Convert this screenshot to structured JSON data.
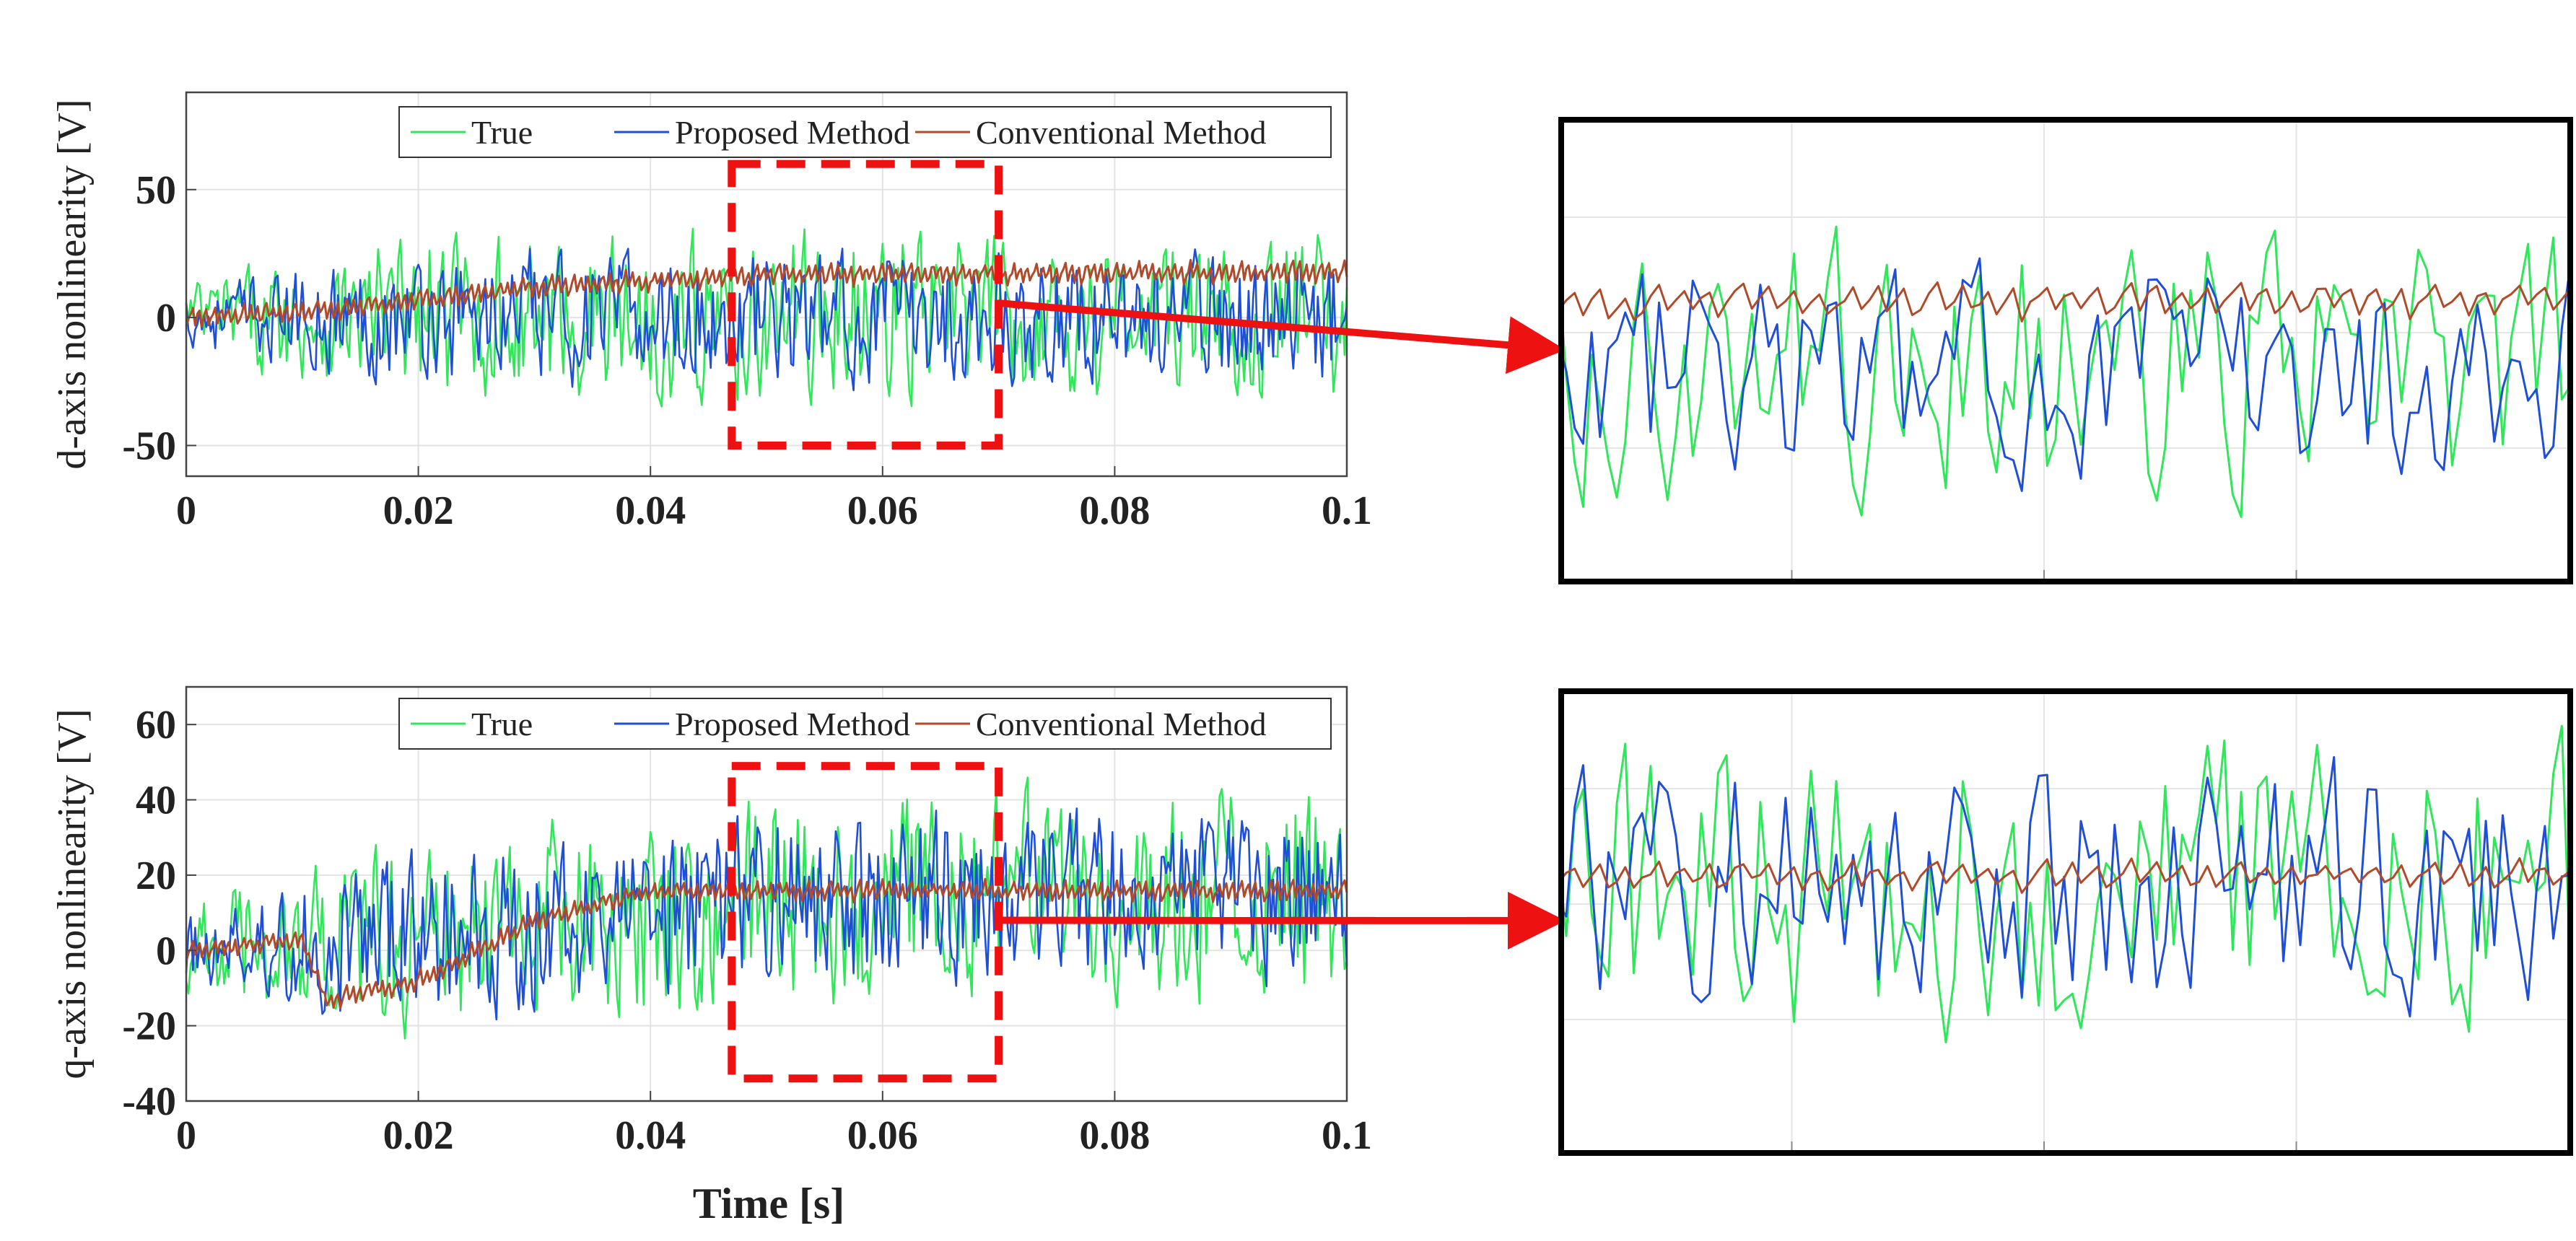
{
  "chart_data": [
    {
      "type": "line",
      "ylabel": "d-axis nonlinearity [V]",
      "xlabel": "",
      "xlim": [
        0,
        0.1
      ],
      "ylim": [
        -62,
        88
      ],
      "xticks": [
        "0",
        "0.02",
        "0.04",
        "0.06",
        "0.08",
        "0.1"
      ],
      "yticks": [
        "-50",
        "0",
        "50"
      ],
      "grid": true,
      "legend_position": "top-right",
      "zoom_window": {
        "x": [
          0.047,
          0.07
        ],
        "y": [
          -50,
          60
        ]
      },
      "series": [
        {
          "name": "True",
          "color": "#2ee85a",
          "noise_amplitude": 40,
          "trend": [
            [
              0,
              0
            ],
            [
              0.1,
              0
            ]
          ]
        },
        {
          "name": "Proposed Method",
          "color": "#1f4fd8",
          "noise_amplitude": 32,
          "trend": [
            [
              0,
              0
            ],
            [
              0.1,
              0
            ]
          ]
        },
        {
          "name": "Conventional Method",
          "color": "#b04a2a",
          "noise_amplitude": 4,
          "trend": [
            [
              0,
              0
            ],
            [
              0.012,
              3
            ],
            [
              0.03,
              12
            ],
            [
              0.05,
              17
            ],
            [
              0.1,
              18
            ]
          ]
        }
      ]
    },
    {
      "type": "line",
      "ylabel": "q-axis nonlinearity [V]",
      "xlabel": "Time [s]",
      "xlim": [
        0,
        0.1
      ],
      "ylim": [
        -40,
        70
      ],
      "xticks": [
        "0",
        "0.02",
        "0.04",
        "0.06",
        "0.08",
        "0.1"
      ],
      "yticks": [
        "-40",
        "-20",
        "0",
        "20",
        "40",
        "60"
      ],
      "grid": true,
      "legend_position": "top-right",
      "zoom_window": {
        "x": [
          0.047,
          0.07
        ],
        "y": [
          -34,
          49
        ]
      },
      "series": [
        {
          "name": "True",
          "color": "#2ee85a",
          "noise_amplitude": 34,
          "trend": [
            [
              0,
              0
            ],
            [
              0.03,
              5
            ],
            [
              0.05,
              14
            ],
            [
              0.1,
              15
            ]
          ]
        },
        {
          "name": "Proposed Method",
          "color": "#1f4fd8",
          "noise_amplitude": 28,
          "trend": [
            [
              0,
              0
            ],
            [
              0.03,
              5
            ],
            [
              0.05,
              14
            ],
            [
              0.1,
              15
            ]
          ]
        },
        {
          "name": "Conventional Method",
          "color": "#b04a2a",
          "noise_amplitude": 2.5,
          "trend": [
            [
              0,
              0
            ],
            [
              0.01,
              3
            ],
            [
              0.012,
              -13
            ],
            [
              0.02,
              -8
            ],
            [
              0.03,
              8
            ],
            [
              0.04,
              16
            ],
            [
              0.1,
              16
            ]
          ]
        }
      ]
    }
  ],
  "colors": {
    "zoom_box": "#ee1111",
    "arrow": "#ee1111",
    "inset_frame": "#000000"
  }
}
